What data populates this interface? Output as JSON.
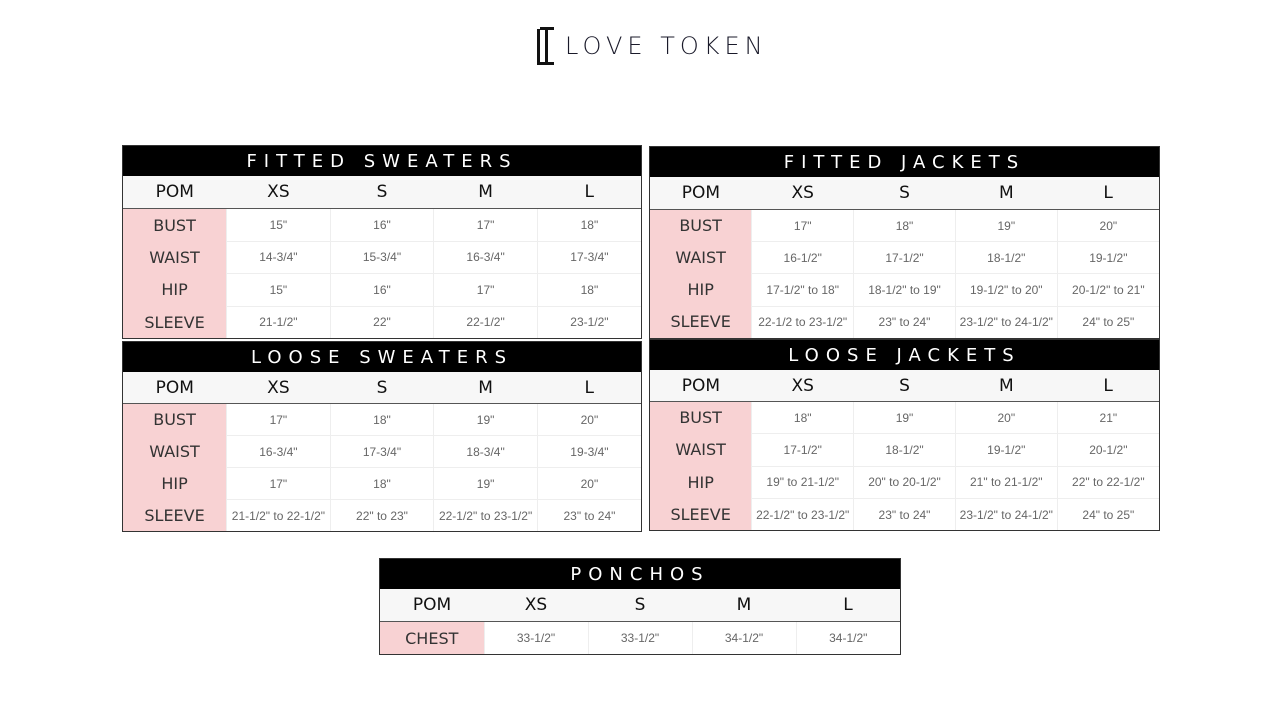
{
  "brand": {
    "name": "LOVE TOKEN",
    "logo_mark": "LT"
  },
  "accent_colors": {
    "pom_column": "#f8d2d3",
    "title_bar": "#000000"
  },
  "charts": [
    {
      "title": "FITTED SWEATERS",
      "headers": [
        "POM",
        "XS",
        "S",
        "M",
        "L"
      ],
      "rows": [
        [
          "BUST",
          "15\"",
          "16\"",
          "17\"",
          "18\""
        ],
        [
          "WAIST",
          "14-3/4\"",
          "15-3/4\"",
          "16-3/4\"",
          "17-3/4\""
        ],
        [
          "HIP",
          "15\"",
          "16\"",
          "17\"",
          "18\""
        ],
        [
          "SLEEVE",
          "21-1/2\"",
          "22\"",
          "22-1/2\"",
          "23-1/2\""
        ]
      ]
    },
    {
      "title": "FITTED JACKETS",
      "headers": [
        "POM",
        "XS",
        "S",
        "M",
        "L"
      ],
      "rows": [
        [
          "BUST",
          "17\"",
          "18\"",
          "19\"",
          "20\""
        ],
        [
          "WAIST",
          "16-1/2\"",
          "17-1/2\"",
          "18-1/2\"",
          "19-1/2\""
        ],
        [
          "HIP",
          "17-1/2\" to 18\"",
          "18-1/2\" to 19\"",
          "19-1/2\" to 20\"",
          "20-1/2\" to 21\""
        ],
        [
          "SLEEVE",
          "22-1/2 to 23-1/2\"",
          "23\" to 24\"",
          "23-1/2\" to 24-1/2\"",
          "24\" to 25\""
        ]
      ]
    },
    {
      "title": "LOOSE SWEATERS",
      "headers": [
        "POM",
        "XS",
        "S",
        "M",
        "L"
      ],
      "rows": [
        [
          "BUST",
          "17\"",
          "18\"",
          "19\"",
          "20\""
        ],
        [
          "WAIST",
          "16-3/4\"",
          "17-3/4\"",
          "18-3/4\"",
          "19-3/4\""
        ],
        [
          "HIP",
          "17\"",
          "18\"",
          "19\"",
          "20\""
        ],
        [
          "SLEEVE",
          "21-1/2\" to 22-1/2\"",
          "22\" to 23\"",
          "22-1/2\" to 23-1/2\"",
          "23\" to 24\""
        ]
      ]
    },
    {
      "title": "LOOSE JACKETS",
      "headers": [
        "POM",
        "XS",
        "S",
        "M",
        "L"
      ],
      "rows": [
        [
          "BUST",
          "18\"",
          "19\"",
          "20\"",
          "21\""
        ],
        [
          "WAIST",
          "17-1/2\"",
          "18-1/2\"",
          "19-1/2\"",
          "20-1/2\""
        ],
        [
          "HIP",
          "19\" to 21-1/2\"",
          "20\" to 20-1/2\"",
          "21\" to 21-1/2\"",
          "22\" to 22-1/2\""
        ],
        [
          "SLEEVE",
          "22-1/2\" to 23-1/2\"",
          "23\" to 24\"",
          "23-1/2\" to 24-1/2\"",
          "24\" to 25\""
        ]
      ]
    },
    {
      "title": "PONCHOS",
      "headers": [
        "POM",
        "XS",
        "S",
        "M",
        "L"
      ],
      "rows": [
        [
          "CHEST",
          "33-1/2\"",
          "33-1/2\"",
          "34-1/2\"",
          "34-1/2\""
        ]
      ]
    }
  ]
}
